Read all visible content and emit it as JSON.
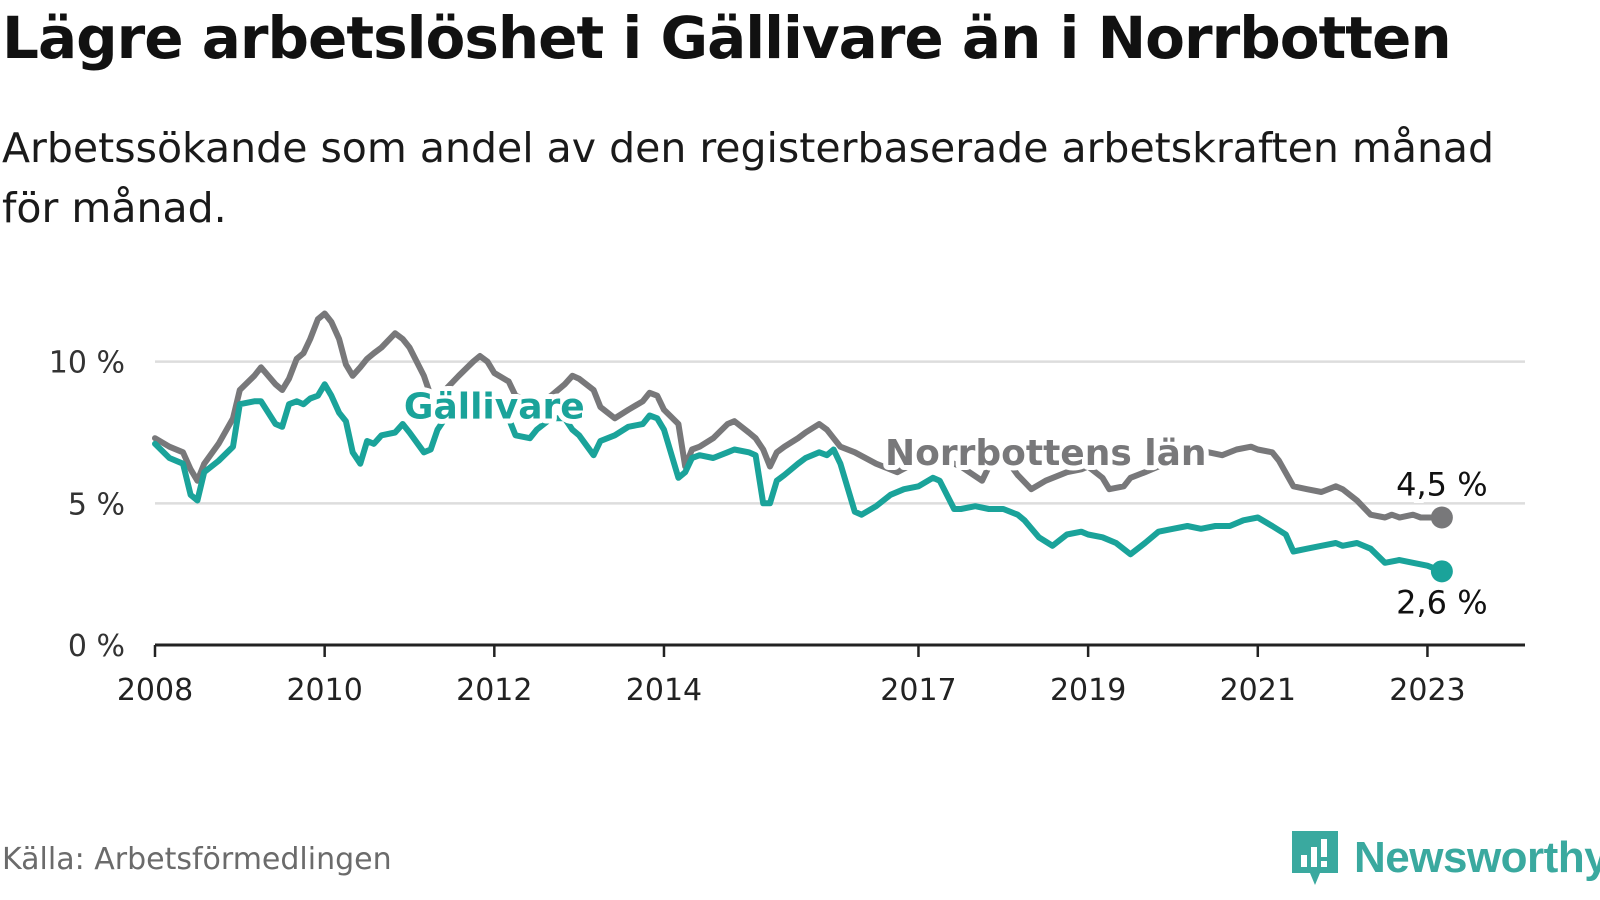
{
  "title": "Lägre arbetslöshet i Gällivare än i Norrbotten",
  "subtitle": "Arbetssökande som andel av den registerbaserade arbetskraften månad för månad.",
  "source": "Källa: Arbetsförmedlingen",
  "brand": "Newsworthy",
  "colors": {
    "gallivare": "#1aa39a",
    "norrbotten": "#78787a",
    "grid": "#dddddd",
    "axis": "#222222",
    "brand": "#3aa99f"
  },
  "chart_data": {
    "type": "line",
    "title": "Lägre arbetslöshet i Gällivare än i Norrbotten",
    "xlabel": "",
    "ylabel": "",
    "xlim": [
      2008,
      2024.15
    ],
    "ylim": [
      0,
      12
    ],
    "yticks": [
      0,
      5,
      10
    ],
    "ytick_labels": [
      "0 %",
      "5 %",
      "10 %"
    ],
    "xticks": [
      2008,
      2010,
      2012,
      2014,
      2017,
      2019,
      2021,
      2023
    ],
    "xtick_labels": [
      "2008",
      "2010",
      "2012",
      "2014",
      "2017",
      "2019",
      "2021",
      "2023"
    ],
    "grid": true,
    "series": [
      {
        "name": "Norrbottens län",
        "color": "#78787a",
        "end_label": "4,5 %",
        "x": [
          2008.0,
          2008.17,
          2008.33,
          2008.42,
          2008.5,
          2008.58,
          2008.75,
          2008.92,
          2009.0,
          2009.17,
          2009.25,
          2009.42,
          2009.5,
          2009.58,
          2009.67,
          2009.75,
          2009.83,
          2009.92,
          2010.0,
          2010.08,
          2010.17,
          2010.25,
          2010.33,
          2010.42,
          2010.5,
          2010.58,
          2010.67,
          2010.83,
          2010.92,
          2011.0,
          2011.17,
          2011.25,
          2011.33,
          2011.42,
          2011.58,
          2011.75,
          2011.83,
          2011.92,
          2012.0,
          2012.17,
          2012.25,
          2012.42,
          2012.5,
          2012.67,
          2012.83,
          2012.92,
          2013.0,
          2013.17,
          2013.25,
          2013.42,
          2013.58,
          2013.75,
          2013.83,
          2013.92,
          2014.0,
          2014.17,
          2014.25,
          2014.33,
          2014.42,
          2014.58,
          2014.75,
          2014.83,
          2015.0,
          2015.08,
          2015.17,
          2015.25,
          2015.33,
          2015.42,
          2015.58,
          2015.67,
          2015.83,
          2015.92,
          2016.0,
          2016.08,
          2016.25,
          2016.5,
          2016.75,
          2017.0,
          2017.25,
          2017.5,
          2017.75,
          2017.83,
          2018.0,
          2018.17,
          2018.33,
          2018.5,
          2018.75,
          2018.92,
          2019.0,
          2019.17,
          2019.25,
          2019.42,
          2019.5,
          2019.67,
          2019.83,
          2020.0,
          2020.17,
          2020.25,
          2020.42,
          2020.58,
          2020.75,
          2020.92,
          2021.0,
          2021.17,
          2021.25,
          2021.42,
          2021.58,
          2021.75,
          2021.92,
          2022.0,
          2022.17,
          2022.33,
          2022.5,
          2022.58,
          2022.67,
          2022.83,
          2022.92,
          2023.0,
          2023.17
        ],
        "y": [
          7.3,
          7.0,
          6.8,
          6.2,
          5.8,
          6.4,
          7.1,
          8.0,
          9.0,
          9.5,
          9.8,
          9.2,
          9.0,
          9.4,
          10.1,
          10.3,
          10.8,
          11.5,
          11.7,
          11.4,
          10.8,
          9.9,
          9.5,
          9.8,
          10.1,
          10.3,
          10.5,
          11.0,
          10.8,
          10.5,
          9.5,
          8.8,
          8.6,
          9.0,
          9.5,
          10.0,
          10.2,
          10.0,
          9.6,
          9.3,
          8.8,
          8.6,
          8.5,
          8.8,
          9.2,
          9.5,
          9.4,
          9.0,
          8.4,
          8.0,
          8.3,
          8.6,
          8.9,
          8.8,
          8.3,
          7.8,
          6.3,
          6.9,
          7.0,
          7.3,
          7.8,
          7.9,
          7.5,
          7.3,
          6.9,
          6.3,
          6.8,
          7.0,
          7.3,
          7.5,
          7.8,
          7.6,
          7.3,
          7.0,
          6.8,
          6.4,
          6.1,
          6.5,
          6.6,
          6.3,
          5.8,
          6.3,
          6.7,
          6.0,
          5.5,
          5.8,
          6.1,
          6.2,
          6.3,
          5.9,
          5.5,
          5.6,
          5.9,
          6.1,
          6.3,
          6.4,
          6.7,
          6.7,
          6.8,
          6.7,
          6.9,
          7.0,
          6.9,
          6.8,
          6.5,
          5.6,
          5.5,
          5.4,
          5.6,
          5.5,
          5.1,
          4.6,
          4.5,
          4.6,
          4.5,
          4.6,
          4.5,
          4.5,
          4.5
        ]
      },
      {
        "name": "Gällivare",
        "color": "#1aa39a",
        "end_label": "2,6 %",
        "x": [
          2008.0,
          2008.17,
          2008.33,
          2008.42,
          2008.5,
          2008.58,
          2008.75,
          2008.92,
          2009.0,
          2009.17,
          2009.25,
          2009.42,
          2009.5,
          2009.58,
          2009.67,
          2009.75,
          2009.83,
          2009.92,
          2010.0,
          2010.08,
          2010.17,
          2010.25,
          2010.33,
          2010.42,
          2010.5,
          2010.58,
          2010.67,
          2010.83,
          2010.92,
          2011.0,
          2011.17,
          2011.25,
          2011.33,
          2011.42,
          2011.58,
          2011.75,
          2011.83,
          2011.92,
          2012.0,
          2012.17,
          2012.25,
          2012.42,
          2012.5,
          2012.67,
          2012.83,
          2012.92,
          2013.0,
          2013.17,
          2013.25,
          2013.42,
          2013.58,
          2013.75,
          2013.83,
          2013.92,
          2014.0,
          2014.17,
          2014.25,
          2014.33,
          2014.42,
          2014.58,
          2014.75,
          2014.83,
          2015.0,
          2015.08,
          2015.17,
          2015.25,
          2015.33,
          2015.42,
          2015.58,
          2015.67,
          2015.83,
          2015.92,
          2016.0,
          2016.08,
          2016.25,
          2016.33,
          2016.5,
          2016.67,
          2016.83,
          2017.0,
          2017.17,
          2017.25,
          2017.42,
          2017.5,
          2017.67,
          2017.83,
          2018.0,
          2018.17,
          2018.25,
          2018.42,
          2018.58,
          2018.75,
          2018.92,
          2019.0,
          2019.17,
          2019.33,
          2019.5,
          2019.67,
          2019.83,
          2020.0,
          2020.17,
          2020.33,
          2020.5,
          2020.67,
          2020.83,
          2021.0,
          2021.17,
          2021.33,
          2021.42,
          2021.58,
          2021.75,
          2021.92,
          2022.0,
          2022.17,
          2022.33,
          2022.5,
          2022.67,
          2022.83,
          2023.0,
          2023.17
        ],
        "y": [
          7.1,
          6.6,
          6.4,
          5.3,
          5.1,
          6.1,
          6.5,
          7.0,
          8.5,
          8.6,
          8.6,
          7.8,
          7.7,
          8.5,
          8.6,
          8.5,
          8.7,
          8.8,
          9.2,
          8.8,
          8.2,
          7.9,
          6.8,
          6.4,
          7.2,
          7.1,
          7.4,
          7.5,
          7.8,
          7.5,
          6.8,
          6.9,
          7.6,
          8.0,
          8.5,
          8.8,
          8.9,
          8.7,
          8.6,
          8.0,
          7.4,
          7.3,
          7.6,
          8.0,
          8.0,
          7.6,
          7.4,
          6.7,
          7.2,
          7.4,
          7.7,
          7.8,
          8.1,
          8.0,
          7.6,
          5.9,
          6.1,
          6.6,
          6.7,
          6.6,
          6.8,
          6.9,
          6.8,
          6.7,
          5.0,
          5.0,
          5.8,
          6.0,
          6.4,
          6.6,
          6.8,
          6.7,
          6.9,
          6.4,
          4.7,
          4.6,
          4.9,
          5.3,
          5.5,
          5.6,
          5.9,
          5.8,
          4.8,
          4.8,
          4.9,
          4.8,
          4.8,
          4.6,
          4.4,
          3.8,
          3.5,
          3.9,
          4.0,
          3.9,
          3.8,
          3.6,
          3.2,
          3.6,
          4.0,
          4.1,
          4.2,
          4.1,
          4.2,
          4.2,
          4.4,
          4.5,
          4.2,
          3.9,
          3.3,
          3.4,
          3.5,
          3.6,
          3.5,
          3.6,
          3.4,
          2.9,
          3.0,
          2.9,
          2.8,
          2.6
        ]
      }
    ]
  }
}
